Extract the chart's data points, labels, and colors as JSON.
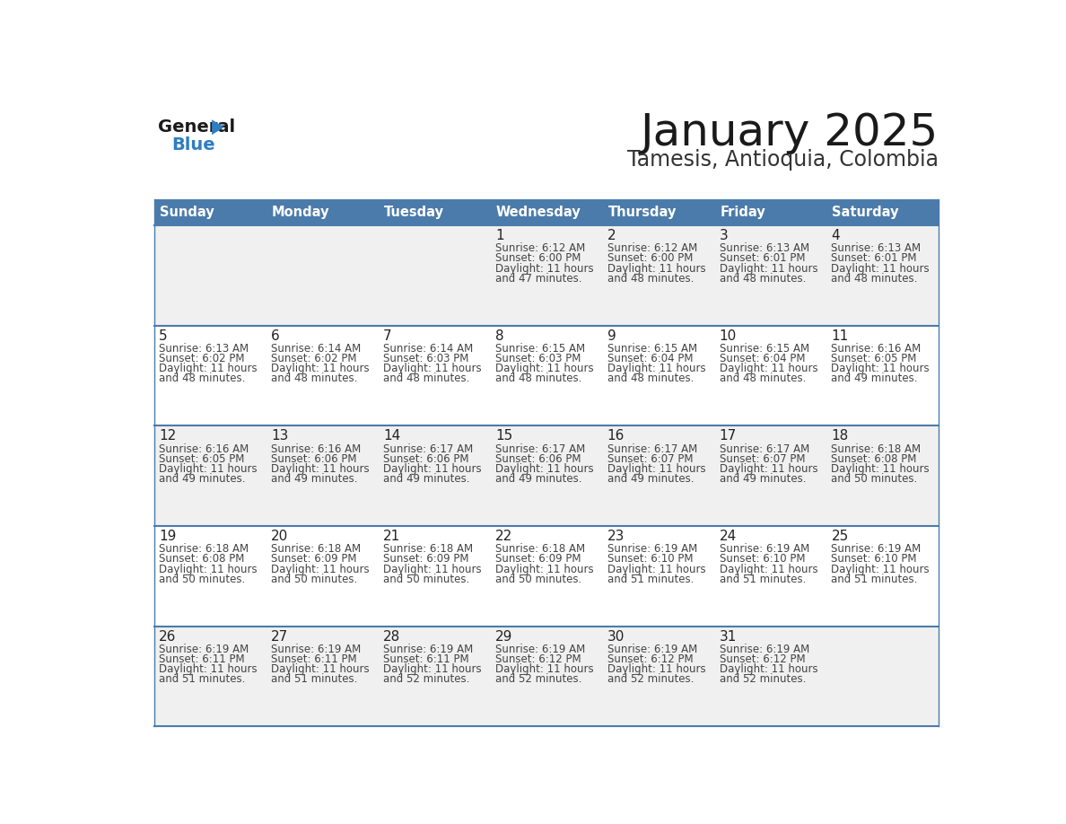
{
  "title": "January 2025",
  "subtitle": "Tamesis, Antioquia, Colombia",
  "days_of_week": [
    "Sunday",
    "Monday",
    "Tuesday",
    "Wednesday",
    "Thursday",
    "Friday",
    "Saturday"
  ],
  "header_bg_color": "#4b7baa",
  "header_text_color": "#ffffff",
  "odd_row_bg": "#f0f0f0",
  "even_row_bg": "#ffffff",
  "cell_text_color": "#444444",
  "day_num_color": "#222222",
  "title_color": "#1a1a1a",
  "subtitle_color": "#333333",
  "divider_color": "#4b7baa",
  "logo_general_color": "#1a1a1a",
  "logo_blue_color": "#2e7ec1",
  "calendar_data": [
    [
      null,
      null,
      null,
      {
        "day": 1,
        "sunrise": "6:12 AM",
        "sunset": "6:00 PM",
        "daylight": "11 hours",
        "daylight2": "and 47 minutes."
      },
      {
        "day": 2,
        "sunrise": "6:12 AM",
        "sunset": "6:00 PM",
        "daylight": "11 hours",
        "daylight2": "and 48 minutes."
      },
      {
        "day": 3,
        "sunrise": "6:13 AM",
        "sunset": "6:01 PM",
        "daylight": "11 hours",
        "daylight2": "and 48 minutes."
      },
      {
        "day": 4,
        "sunrise": "6:13 AM",
        "sunset": "6:01 PM",
        "daylight": "11 hours",
        "daylight2": "and 48 minutes."
      }
    ],
    [
      {
        "day": 5,
        "sunrise": "6:13 AM",
        "sunset": "6:02 PM",
        "daylight": "11 hours",
        "daylight2": "and 48 minutes."
      },
      {
        "day": 6,
        "sunrise": "6:14 AM",
        "sunset": "6:02 PM",
        "daylight": "11 hours",
        "daylight2": "and 48 minutes."
      },
      {
        "day": 7,
        "sunrise": "6:14 AM",
        "sunset": "6:03 PM",
        "daylight": "11 hours",
        "daylight2": "and 48 minutes."
      },
      {
        "day": 8,
        "sunrise": "6:15 AM",
        "sunset": "6:03 PM",
        "daylight": "11 hours",
        "daylight2": "and 48 minutes."
      },
      {
        "day": 9,
        "sunrise": "6:15 AM",
        "sunset": "6:04 PM",
        "daylight": "11 hours",
        "daylight2": "and 48 minutes."
      },
      {
        "day": 10,
        "sunrise": "6:15 AM",
        "sunset": "6:04 PM",
        "daylight": "11 hours",
        "daylight2": "and 48 minutes."
      },
      {
        "day": 11,
        "sunrise": "6:16 AM",
        "sunset": "6:05 PM",
        "daylight": "11 hours",
        "daylight2": "and 49 minutes."
      }
    ],
    [
      {
        "day": 12,
        "sunrise": "6:16 AM",
        "sunset": "6:05 PM",
        "daylight": "11 hours",
        "daylight2": "and 49 minutes."
      },
      {
        "day": 13,
        "sunrise": "6:16 AM",
        "sunset": "6:06 PM",
        "daylight": "11 hours",
        "daylight2": "and 49 minutes."
      },
      {
        "day": 14,
        "sunrise": "6:17 AM",
        "sunset": "6:06 PM",
        "daylight": "11 hours",
        "daylight2": "and 49 minutes."
      },
      {
        "day": 15,
        "sunrise": "6:17 AM",
        "sunset": "6:06 PM",
        "daylight": "11 hours",
        "daylight2": "and 49 minutes."
      },
      {
        "day": 16,
        "sunrise": "6:17 AM",
        "sunset": "6:07 PM",
        "daylight": "11 hours",
        "daylight2": "and 49 minutes."
      },
      {
        "day": 17,
        "sunrise": "6:17 AM",
        "sunset": "6:07 PM",
        "daylight": "11 hours",
        "daylight2": "and 49 minutes."
      },
      {
        "day": 18,
        "sunrise": "6:18 AM",
        "sunset": "6:08 PM",
        "daylight": "11 hours",
        "daylight2": "and 50 minutes."
      }
    ],
    [
      {
        "day": 19,
        "sunrise": "6:18 AM",
        "sunset": "6:08 PM",
        "daylight": "11 hours",
        "daylight2": "and 50 minutes."
      },
      {
        "day": 20,
        "sunrise": "6:18 AM",
        "sunset": "6:09 PM",
        "daylight": "11 hours",
        "daylight2": "and 50 minutes."
      },
      {
        "day": 21,
        "sunrise": "6:18 AM",
        "sunset": "6:09 PM",
        "daylight": "11 hours",
        "daylight2": "and 50 minutes."
      },
      {
        "day": 22,
        "sunrise": "6:18 AM",
        "sunset": "6:09 PM",
        "daylight": "11 hours",
        "daylight2": "and 50 minutes."
      },
      {
        "day": 23,
        "sunrise": "6:19 AM",
        "sunset": "6:10 PM",
        "daylight": "11 hours",
        "daylight2": "and 51 minutes."
      },
      {
        "day": 24,
        "sunrise": "6:19 AM",
        "sunset": "6:10 PM",
        "daylight": "11 hours",
        "daylight2": "and 51 minutes."
      },
      {
        "day": 25,
        "sunrise": "6:19 AM",
        "sunset": "6:10 PM",
        "daylight": "11 hours",
        "daylight2": "and 51 minutes."
      }
    ],
    [
      {
        "day": 26,
        "sunrise": "6:19 AM",
        "sunset": "6:11 PM",
        "daylight": "11 hours",
        "daylight2": "and 51 minutes."
      },
      {
        "day": 27,
        "sunrise": "6:19 AM",
        "sunset": "6:11 PM",
        "daylight": "11 hours",
        "daylight2": "and 51 minutes."
      },
      {
        "day": 28,
        "sunrise": "6:19 AM",
        "sunset": "6:11 PM",
        "daylight": "11 hours",
        "daylight2": "and 52 minutes."
      },
      {
        "day": 29,
        "sunrise": "6:19 AM",
        "sunset": "6:12 PM",
        "daylight": "11 hours",
        "daylight2": "and 52 minutes."
      },
      {
        "day": 30,
        "sunrise": "6:19 AM",
        "sunset": "6:12 PM",
        "daylight": "11 hours",
        "daylight2": "and 52 minutes."
      },
      {
        "day": 31,
        "sunrise": "6:19 AM",
        "sunset": "6:12 PM",
        "daylight": "11 hours",
        "daylight2": "and 52 minutes."
      },
      null
    ]
  ]
}
